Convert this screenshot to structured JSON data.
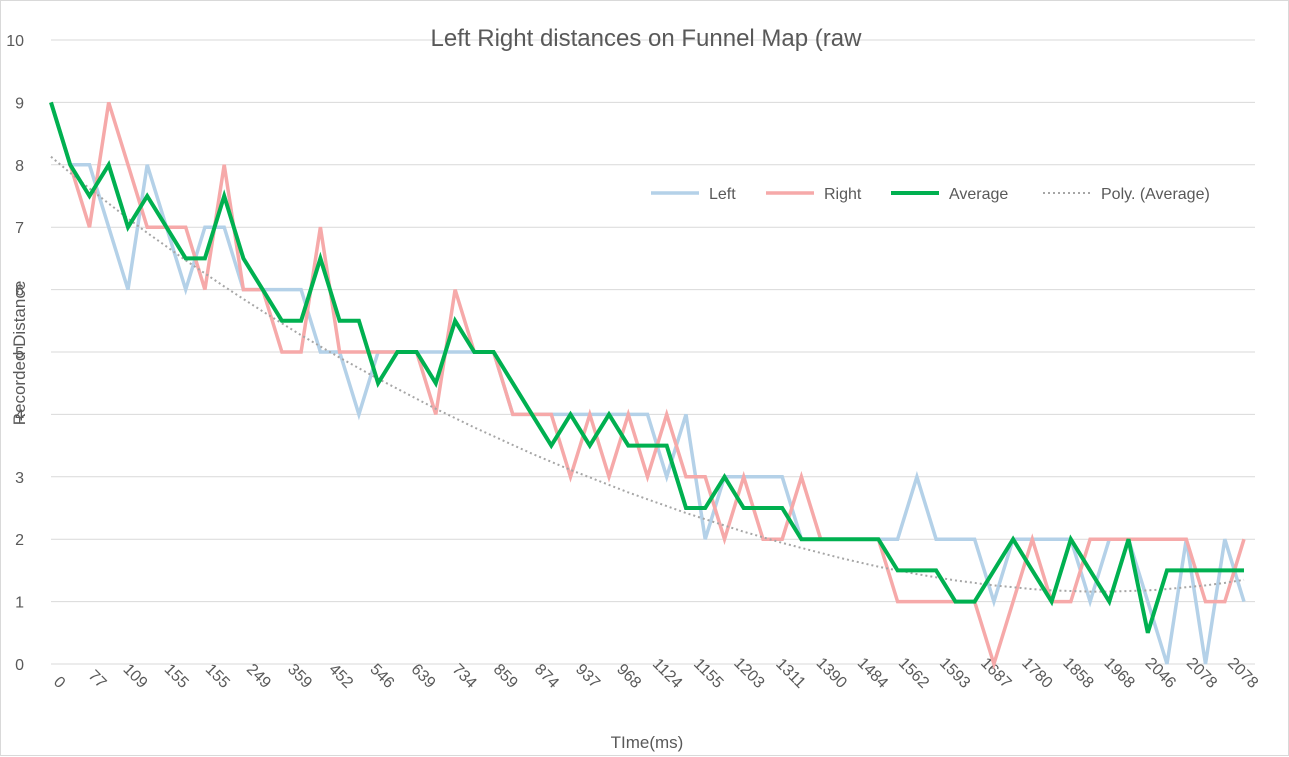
{
  "chart_data": {
    "type": "line",
    "title": "Left Right distances on Funnel Map (raw",
    "xlabel": "TIme(ms)",
    "ylabel": "Recorded Distance",
    "ylim": [
      0,
      10
    ],
    "yticks": [
      0,
      1,
      2,
      3,
      4,
      5,
      6,
      7,
      8,
      9,
      10
    ],
    "grid": true,
    "legend": "top-right",
    "x_tick_labels": [
      "0",
      "77",
      "109",
      "155",
      "155",
      "249",
      "359",
      "452",
      "546",
      "639",
      "734",
      "859",
      "874",
      "937",
      "968",
      "1124",
      "1155",
      "1203",
      "1311",
      "1390",
      "1484",
      "1562",
      "1593",
      "1687",
      "1780",
      "1858",
      "1968",
      "2046",
      "2078",
      "2078"
    ],
    "series": [
      {
        "name": "Left",
        "color": "#b4d1e8",
        "values": [
          9,
          8,
          8,
          7,
          6,
          8,
          7,
          6,
          7,
          7,
          6,
          6,
          6,
          6,
          5,
          5,
          4,
          5,
          5,
          5,
          5,
          5,
          5,
          5,
          4,
          4,
          4,
          4,
          4,
          4,
          4,
          4,
          3,
          4,
          2,
          3,
          3,
          3,
          3,
          2,
          2,
          2,
          2,
          2,
          2,
          3,
          2,
          2,
          2,
          1,
          2,
          2,
          2,
          2,
          1,
          2,
          2,
          1,
          0,
          2,
          0,
          2,
          1
        ]
      },
      {
        "name": "Right",
        "color": "#f6a9a9",
        "values": [
          9,
          8,
          7,
          9,
          8,
          7,
          7,
          7,
          6,
          8,
          6,
          6,
          5,
          5,
          7,
          5,
          5,
          5,
          5,
          5,
          4,
          6,
          5,
          5,
          4,
          4,
          4,
          3,
          4,
          3,
          4,
          3,
          4,
          3,
          3,
          2,
          3,
          2,
          2,
          3,
          2,
          2,
          2,
          2,
          1,
          1,
          1,
          1,
          1,
          0,
          1,
          2,
          1,
          1,
          2,
          2,
          2,
          2,
          2,
          2,
          1,
          1,
          2
        ]
      },
      {
        "name": "Average",
        "color": "#00b050",
        "values": [
          9,
          8,
          7.5,
          8,
          7,
          7.5,
          7,
          6.5,
          6.5,
          7.5,
          6.5,
          6,
          5.5,
          5.5,
          6.5,
          5.5,
          5.5,
          4.5,
          5,
          5,
          4.5,
          5.5,
          5,
          5,
          4.5,
          4,
          3.5,
          4,
          3.5,
          4,
          3.5,
          3.5,
          3.5,
          2.5,
          2.5,
          3,
          2.5,
          2.5,
          2.5,
          2,
          2,
          2,
          2,
          2,
          1.5,
          1.5,
          1.5,
          1,
          1,
          1.5,
          2,
          1.5,
          1,
          2,
          1.5,
          1,
          2,
          0.5,
          1.5,
          1.5,
          1.5,
          1.5,
          1.5
        ]
      },
      {
        "name": "Poly. (Average)",
        "color": "#a6a6a6",
        "trendline": true,
        "values": [
          8.13,
          7.87,
          7.62,
          7.38,
          7.14,
          6.91,
          6.69,
          6.47,
          6.26,
          6.05,
          5.85,
          5.65,
          5.46,
          5.27,
          5.09,
          4.91,
          4.74,
          4.57,
          4.41,
          4.25,
          4.09,
          3.94,
          3.79,
          3.65,
          3.51,
          3.37,
          3.24,
          3.11,
          2.99,
          2.87,
          2.75,
          2.64,
          2.53,
          2.42,
          2.32,
          2.22,
          2.12,
          2.03,
          1.94,
          1.86,
          1.78,
          1.7,
          1.63,
          1.56,
          1.5,
          1.44,
          1.39,
          1.34,
          1.3,
          1.26,
          1.23,
          1.2,
          1.18,
          1.17,
          1.16,
          1.16,
          1.17,
          1.18,
          1.2,
          1.23,
          1.26,
          1.3,
          1.35
        ]
      }
    ]
  }
}
